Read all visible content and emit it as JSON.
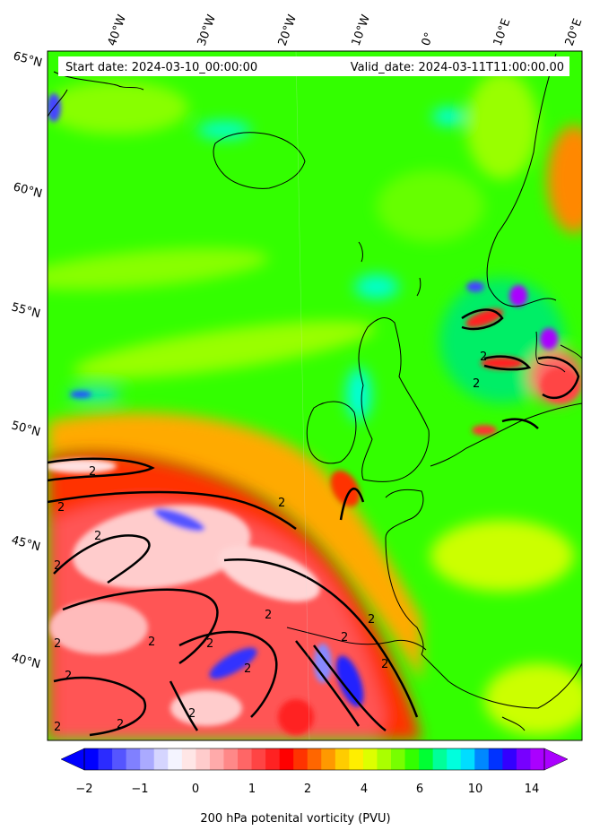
{
  "header": {
    "start_label": "Start date: 2024-03-10_00:00:00",
    "valid_label": "Valid_date: 2024-03-11T11:00:00.00"
  },
  "axes": {
    "lon_labels": [
      "40°W",
      "30°W",
      "20°W",
      "10°W",
      "0°",
      "10°E",
      "20°E"
    ],
    "lat_labels": [
      "65°N",
      "60°N",
      "55°N",
      "50°N",
      "45°N",
      "40°N"
    ]
  },
  "contour_label": "2",
  "colorbar": {
    "title": "200 hPa potenital vorticity (PVU)",
    "ticks": [
      "−2",
      "−1",
      "0",
      "1",
      "2",
      "4",
      "6",
      "10",
      "14"
    ],
    "colors": [
      "#0000ff",
      "#2b2bff",
      "#5555ff",
      "#8080ff",
      "#aaaaff",
      "#d5d5ff",
      "#f4f4ff",
      "#ffe6e6",
      "#ffcccc",
      "#ffaaaa",
      "#ff8888",
      "#ff6666",
      "#ff4444",
      "#ff2222",
      "#ff0000",
      "#ff3300",
      "#ff6600",
      "#ff9900",
      "#ffcc00",
      "#ffee00",
      "#ddff00",
      "#aaff00",
      "#77ff00",
      "#33ff00",
      "#00ff33",
      "#00ff99",
      "#00ffdd",
      "#00ddff",
      "#0088ff",
      "#0033ff",
      "#3300ff",
      "#7700ff",
      "#aa00ff"
    ]
  }
}
